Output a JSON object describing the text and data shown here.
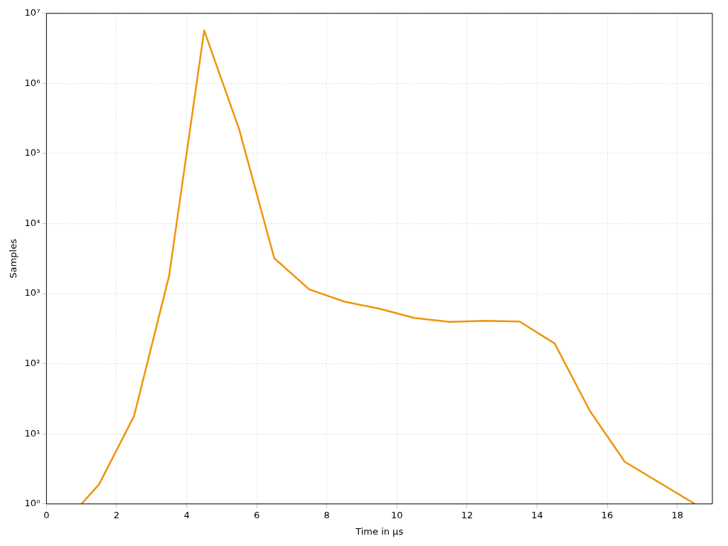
{
  "chart_data": {
    "type": "line",
    "xlabel": "Time in µs",
    "ylabel": "Samples",
    "x": [
      1,
      1.5,
      2.5,
      3.5,
      4.5,
      5.5,
      6.5,
      7.5,
      8.5,
      9.5,
      10.5,
      11.5,
      12.5,
      13.5,
      14.5,
      15.5,
      16.5,
      18.5
    ],
    "series": [
      {
        "color": "#f0940a",
        "values": [
          1,
          1.9,
          18,
          1800,
          5700000,
          220000,
          3200,
          1150,
          770,
          610,
          450,
          395,
          410,
          400,
          195,
          21.5,
          4,
          1
        ]
      }
    ],
    "log": "y",
    "xlim": [
      0,
      19
    ],
    "ylim": [
      1,
      10000000
    ],
    "xticks": [
      0,
      2,
      4,
      6,
      8,
      10,
      12,
      14,
      16,
      18
    ],
    "yticks": [
      {
        "value": 1,
        "label": "10⁰"
      },
      {
        "value": 10,
        "label": "10¹"
      },
      {
        "value": 100,
        "label": "10²"
      },
      {
        "value": 1000,
        "label": "10³"
      },
      {
        "value": 10000,
        "label": "10⁴"
      },
      {
        "value": 100000,
        "label": "10⁵"
      },
      {
        "value": 1000000,
        "label": "10⁶"
      },
      {
        "value": 10000000,
        "label": "10⁷"
      }
    ],
    "grid": true,
    "legend": false,
    "marker": "none",
    "line_style": "solid"
  }
}
